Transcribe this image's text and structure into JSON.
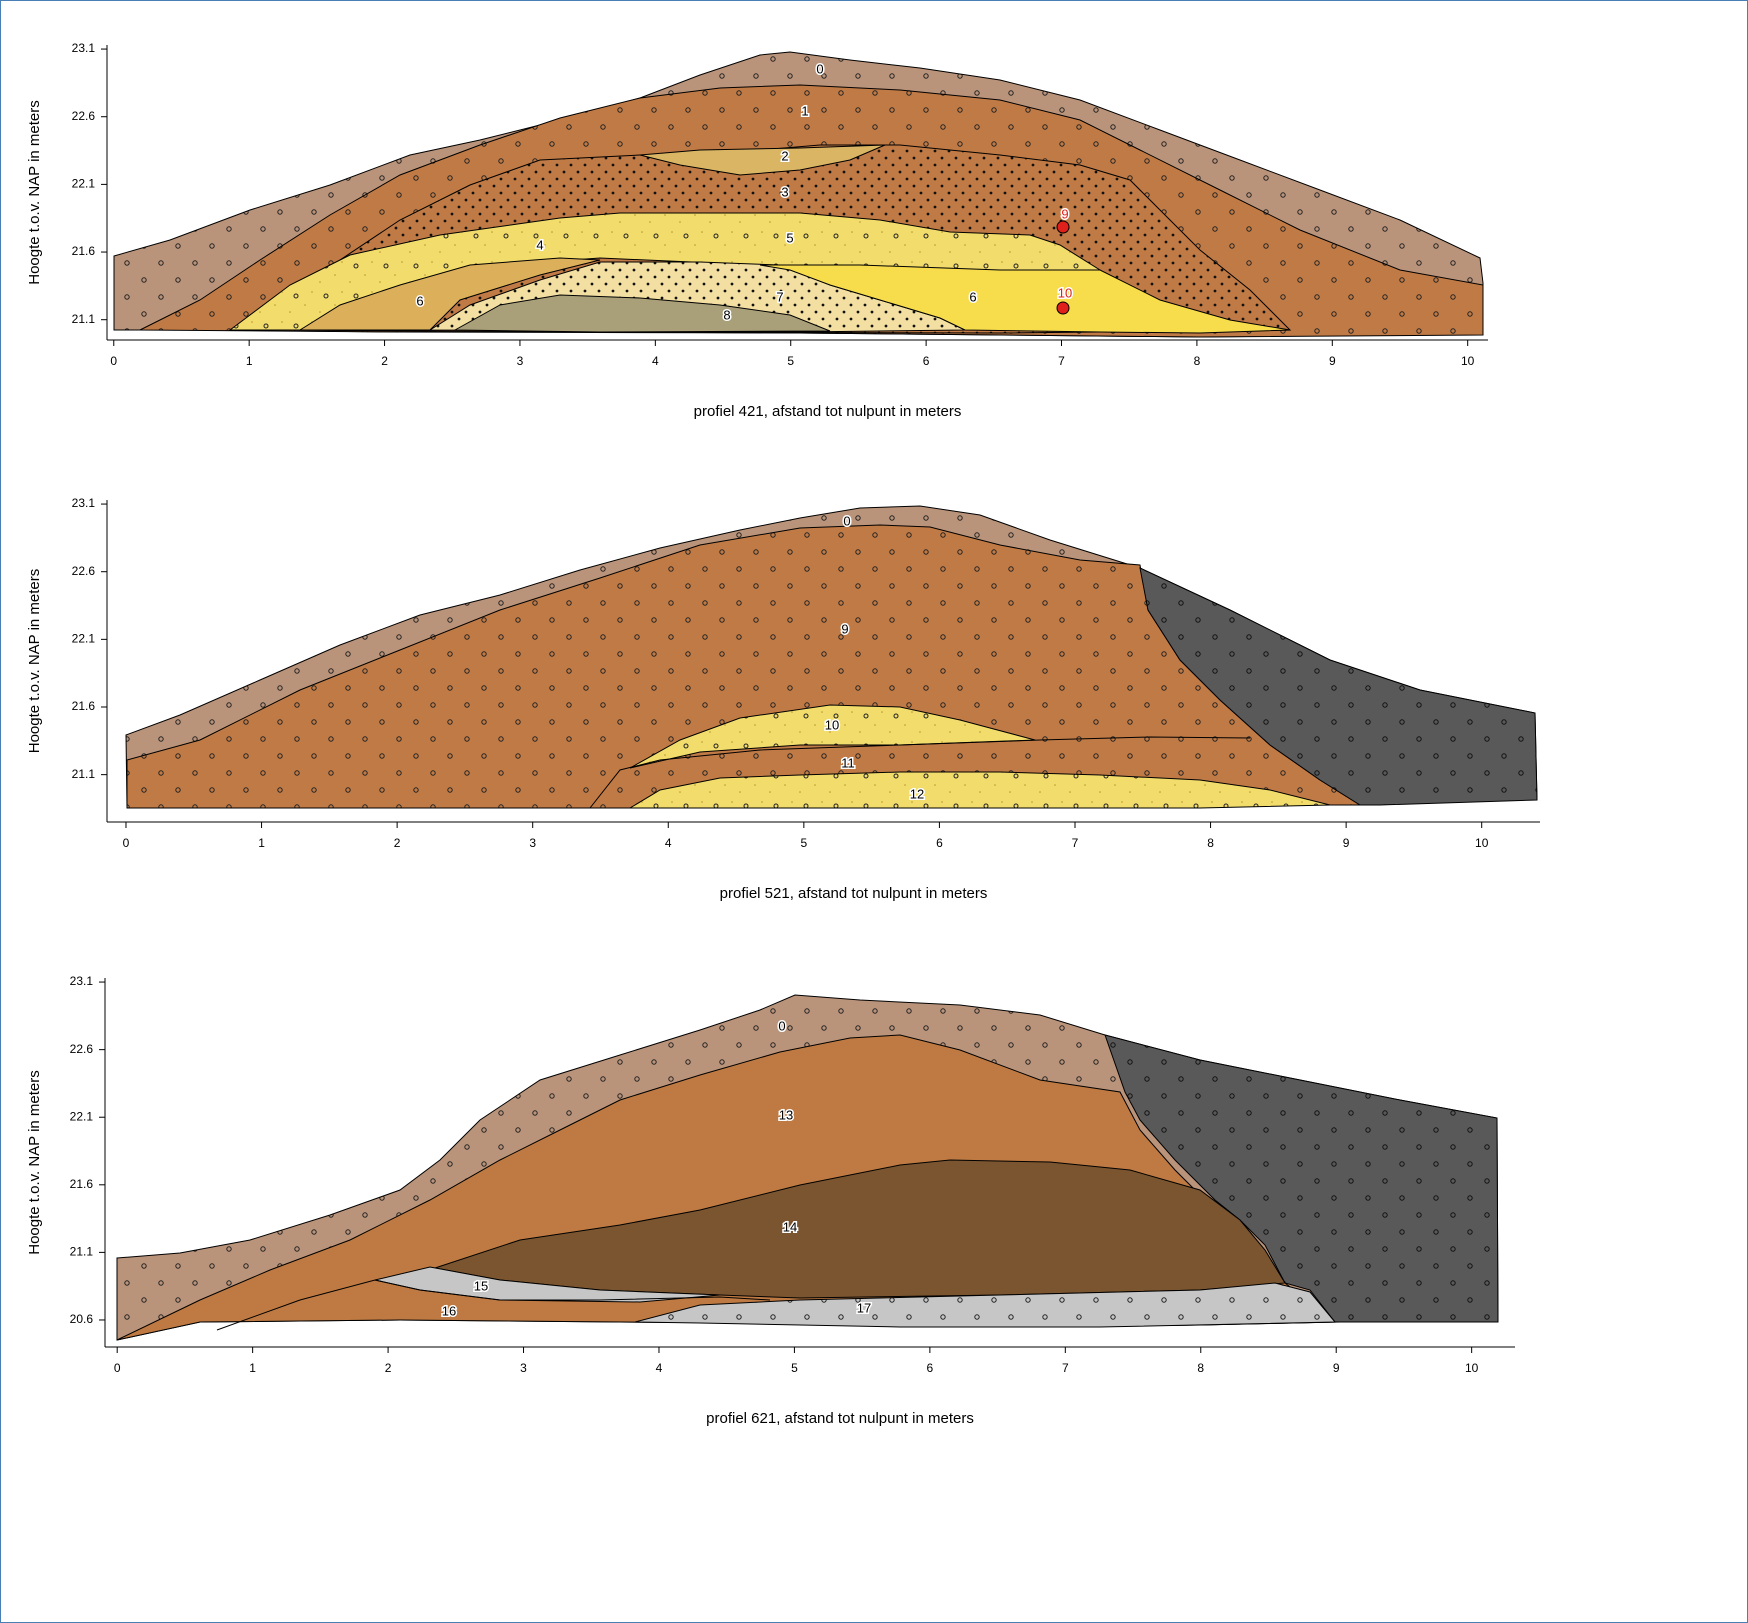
{
  "chart_data": [
    {
      "type": "cross-section",
      "y_label": "Hoogte t.o.v. NAP in meters",
      "x_label": "profiel 421, afstand tot nulpunt in meters",
      "xlim": [
        -0.05,
        10.15
      ],
      "ylim": [
        20.95,
        23.13
      ],
      "xticks": [
        0,
        1,
        2,
        3,
        4,
        5,
        6,
        7,
        8,
        9,
        10
      ],
      "yticks": [
        23.1,
        22.6,
        22.1,
        21.6,
        21.1
      ],
      "layer_labels": [
        "0",
        "1",
        "2",
        "3",
        "4",
        "5",
        "6",
        "7",
        "8",
        "6"
      ],
      "samples": [
        {
          "label": "9"
        },
        {
          "label": "10"
        }
      ],
      "sample_color": "#e0201b"
    },
    {
      "type": "cross-section",
      "y_label": "Hoogte t.o.v. NAP in meters",
      "x_label": "profiel 521, afstand tot nulpunt in meters",
      "xlim": [
        -0.14,
        10.43
      ],
      "ylim": [
        20.75,
        23.13
      ],
      "xticks": [
        0,
        1,
        2,
        3,
        4,
        5,
        6,
        7,
        8,
        9,
        10
      ],
      "yticks": [
        23.1,
        22.6,
        22.1,
        21.6,
        21.1
      ],
      "layer_labels": [
        "0",
        "9",
        "10",
        "11",
        "12"
      ]
    },
    {
      "type": "cross-section",
      "y_label": "Hoogte t.o.v. NAP in meters",
      "x_label": "profiel 621, afstand tot nulpunt in meters",
      "xlim": [
        -0.09,
        10.32
      ],
      "ylim": [
        20.4,
        23.13
      ],
      "xticks": [
        0,
        1,
        2,
        3,
        4,
        5,
        6,
        7,
        8,
        9,
        10
      ],
      "yticks": [
        23.1,
        22.6,
        22.1,
        21.6,
        21.1,
        20.6
      ],
      "layer_labels": [
        "0",
        "13",
        "14",
        "15",
        "16",
        "17"
      ]
    }
  ]
}
